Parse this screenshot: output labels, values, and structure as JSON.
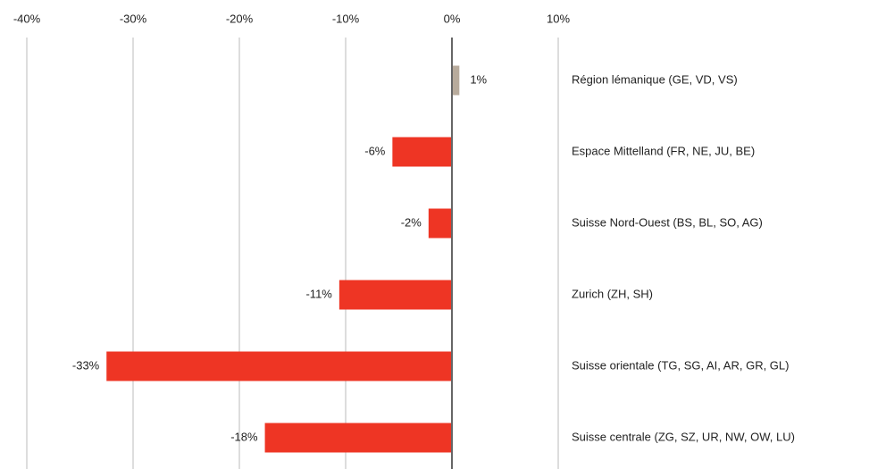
{
  "chart_data": {
    "type": "hbar",
    "categories": [
      "Région lémanique (GE, VD, VS)",
      "Espace Mittelland (FR, NE, JU, BE)",
      "Suisse Nord-Ouest (BS, BL, SO, AG)",
      "Zurich (ZH, SH)",
      "Suisse orientale (TG, SG, AI, AR, GR, GL)",
      "Suisse centrale (ZG, SZ, UR, NW, OW, LU)"
    ],
    "values": [
      0.7,
      -5.6,
      -2.2,
      -10.6,
      -32.5,
      -17.6
    ],
    "value_labels": [
      "1%",
      "-6%",
      "-2%",
      "-11%",
      "-33%",
      "-18%"
    ],
    "colors": [
      "#b8ab9c",
      "#ee3524",
      "#ee3524",
      "#ee3524",
      "#ee3524",
      "#ee3524"
    ],
    "xlim": [
      -40,
      10
    ],
    "xticks": [
      {
        "value": -40,
        "label": "-40%"
      },
      {
        "value": -30,
        "label": "-30%"
      },
      {
        "value": -20,
        "label": "-20%"
      },
      {
        "value": -10,
        "label": "-10%"
      },
      {
        "value": 0,
        "label": "0%"
      },
      {
        "value": 10,
        "label": "10%"
      }
    ],
    "grid": true
  }
}
